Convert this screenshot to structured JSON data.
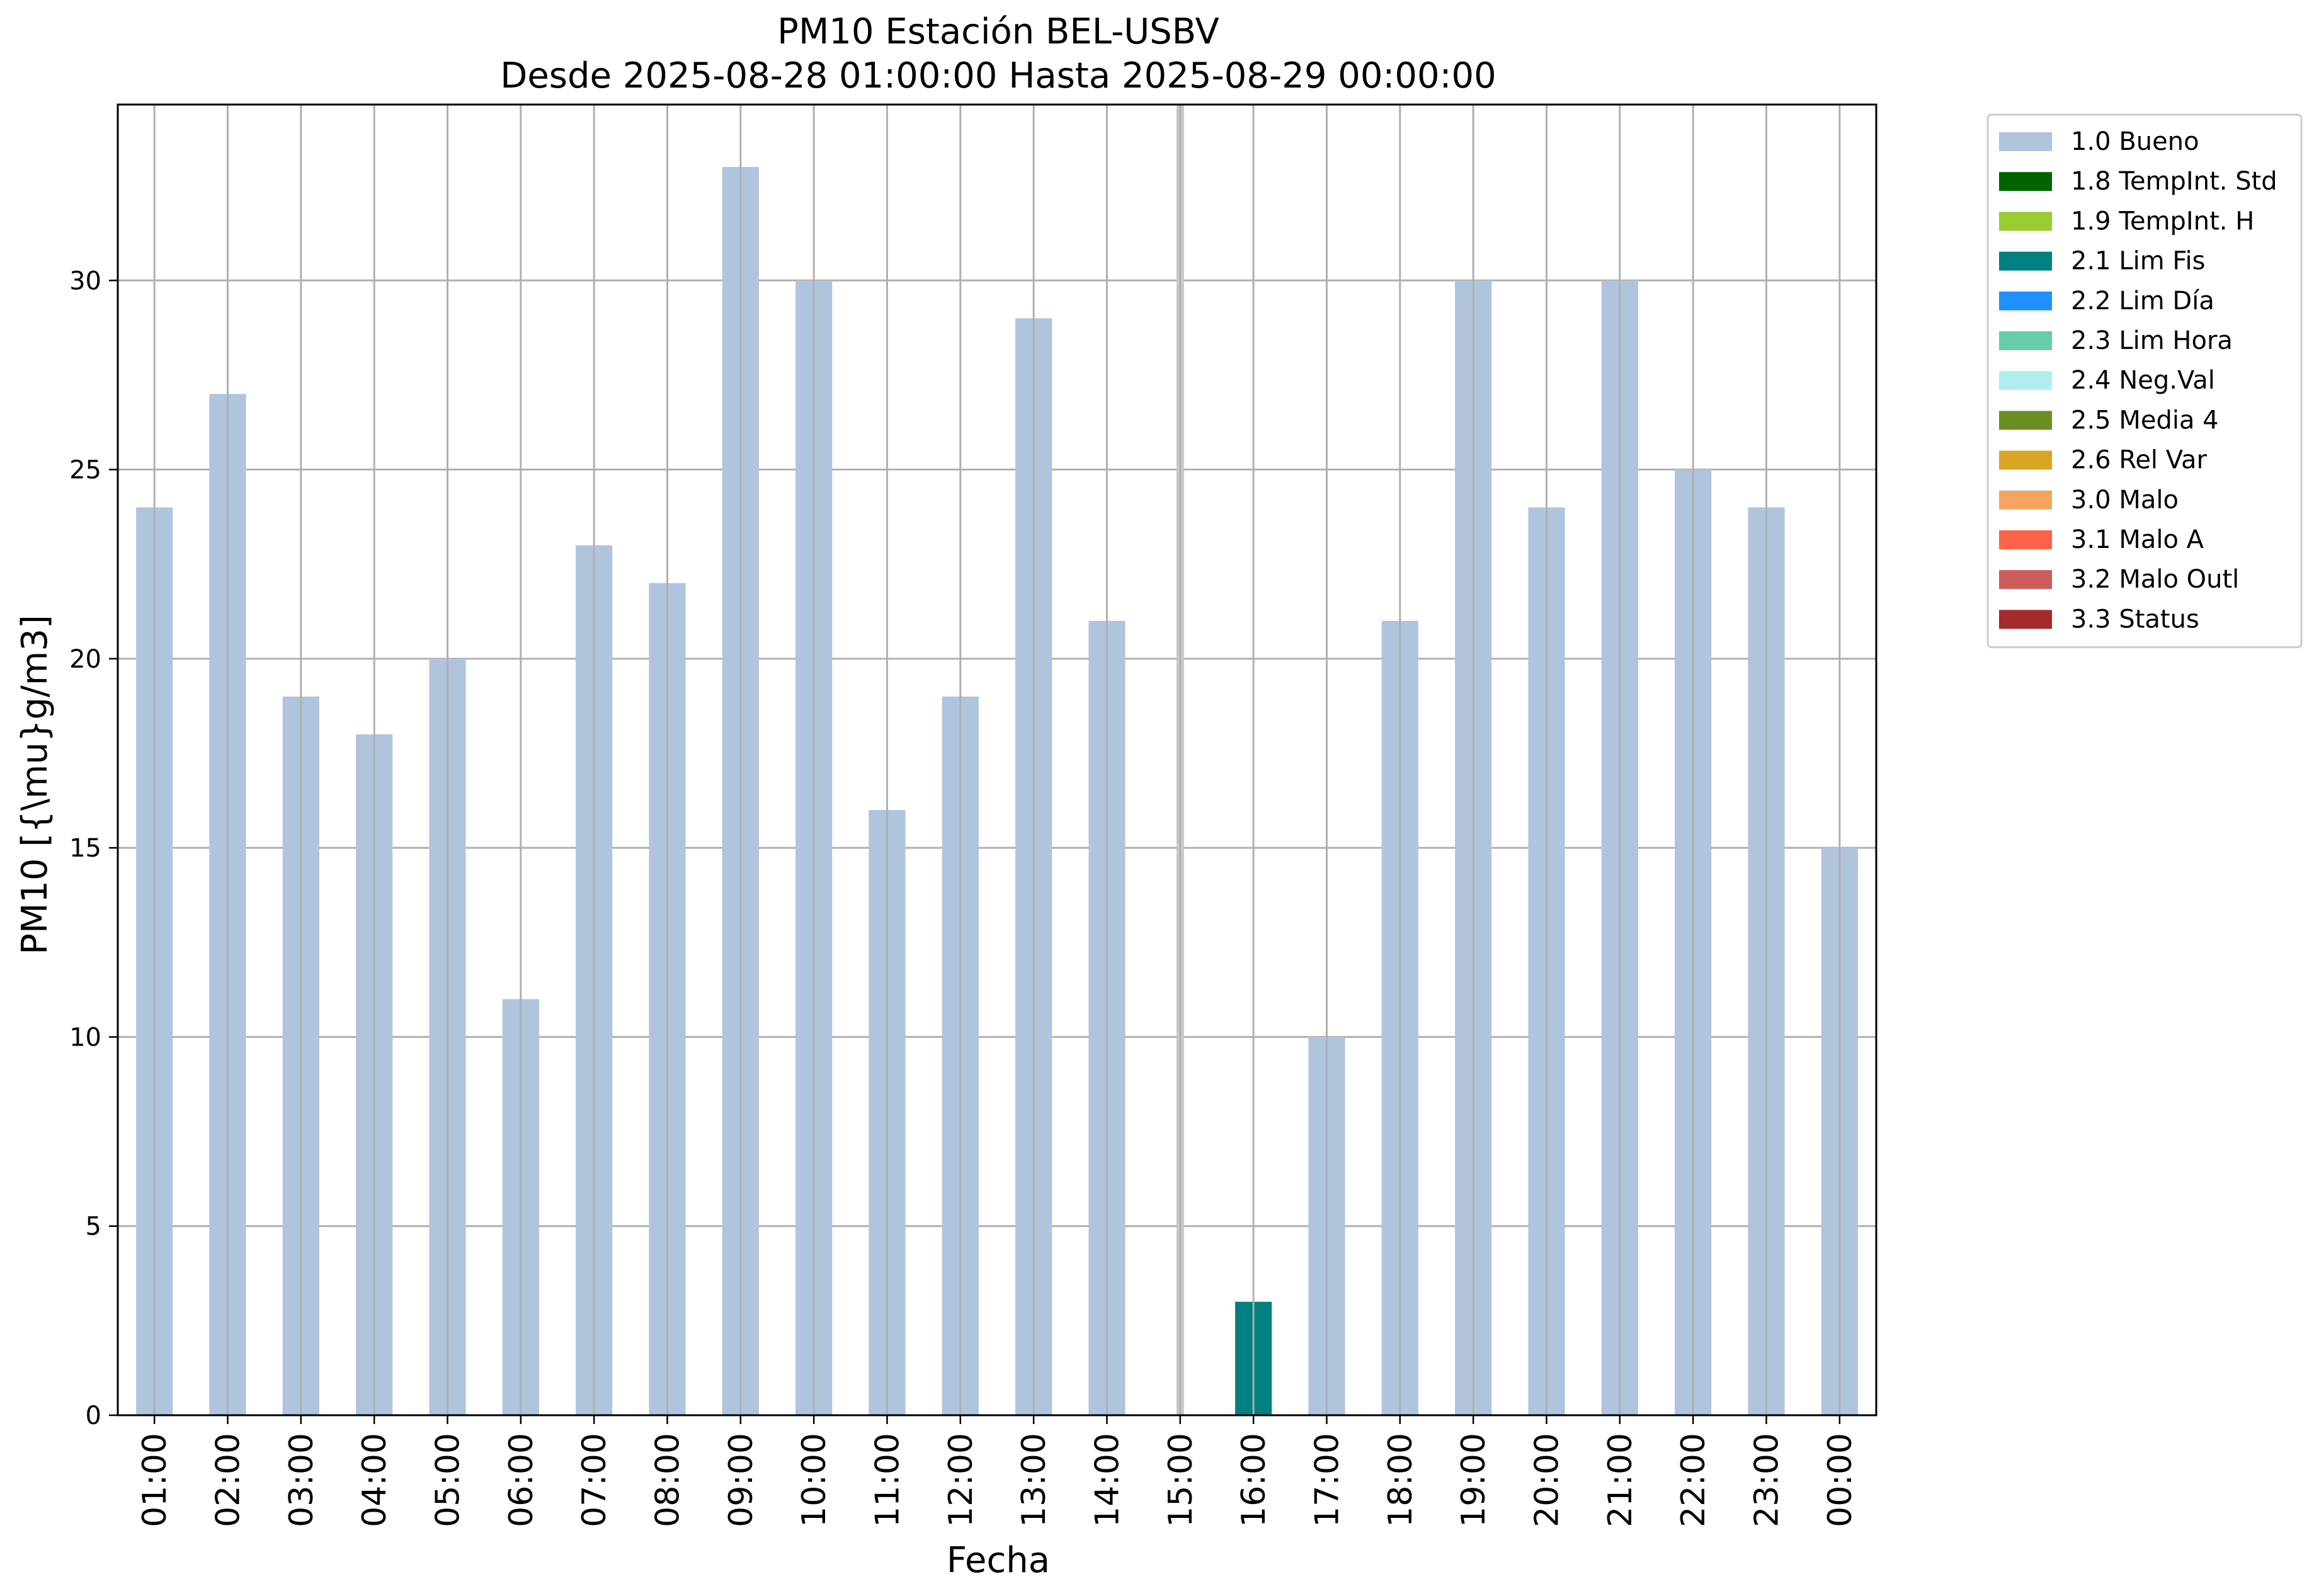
{
  "chart_data": {
    "type": "bar",
    "title": "PM10 Estación BEL-USBV",
    "subtitle": "Desde 2025-08-28 01:00:00 Hasta 2025-08-29 00:00:00",
    "xlabel": "Fecha",
    "ylabel": "PM10 [{\\mu}g/m3]",
    "ylim": [
      0,
      34.65
    ],
    "yticks": [
      0,
      5,
      10,
      15,
      20,
      25,
      30
    ],
    "grid": true,
    "legend_position": "outside-top-right",
    "categories": [
      "01:00",
      "02:00",
      "03:00",
      "04:00",
      "05:00",
      "06:00",
      "07:00",
      "08:00",
      "09:00",
      "10:00",
      "11:00",
      "12:00",
      "13:00",
      "14:00",
      "15:00",
      "16:00",
      "17:00",
      "18:00",
      "19:00",
      "20:00",
      "21:00",
      "22:00",
      "23:00",
      "00:00"
    ],
    "values": [
      24,
      27,
      19,
      18,
      20,
      11,
      23,
      22,
      33,
      30,
      16,
      19,
      29,
      21,
      null,
      3,
      10,
      21,
      30,
      24,
      30,
      25,
      24,
      15
    ],
    "flags": [
      "1.0 Bueno",
      "1.0 Bueno",
      "1.0 Bueno",
      "1.0 Bueno",
      "1.0 Bueno",
      "1.0 Bueno",
      "1.0 Bueno",
      "1.0 Bueno",
      "1.0 Bueno",
      "1.0 Bueno",
      "1.0 Bueno",
      "1.0 Bueno",
      "1.0 Bueno",
      "1.0 Bueno",
      null,
      "2.1 Lim Fis",
      "1.0 Bueno",
      "1.0 Bueno",
      "1.0 Bueno",
      "1.0 Bueno",
      "1.0 Bueno",
      "1.0 Bueno",
      "1.0 Bueno",
      "1.0 Bueno"
    ],
    "missing_marker_category": "15:00",
    "legend": [
      {
        "name": "1.0 Bueno",
        "color": "#b0c4de"
      },
      {
        "name": "1.8 TempInt. Std",
        "color": "#006400"
      },
      {
        "name": "1.9 TempInt. H",
        "color": "#9acd32"
      },
      {
        "name": "2.1 Lim Fis",
        "color": "#008080"
      },
      {
        "name": "2.2 Lim Día",
        "color": "#1e90ff"
      },
      {
        "name": "2.3 Lim Hora",
        "color": "#66cdaa"
      },
      {
        "name": "2.4 Neg.Val",
        "color": "#afeeee"
      },
      {
        "name": "2.5 Media 4",
        "color": "#6b8e23"
      },
      {
        "name": "2.6 Rel Var",
        "color": "#daa520"
      },
      {
        "name": "3.0 Malo",
        "color": "#f4a460"
      },
      {
        "name": "3.1 Malo A",
        "color": "#ff6347"
      },
      {
        "name": "3.2 Malo Outl",
        "color": "#cd5c5c"
      },
      {
        "name": "3.3 Status",
        "color": "#a52a2a"
      }
    ],
    "grid_color": "#b0b0b0",
    "missing_marker_color": "#c8c8c8"
  }
}
